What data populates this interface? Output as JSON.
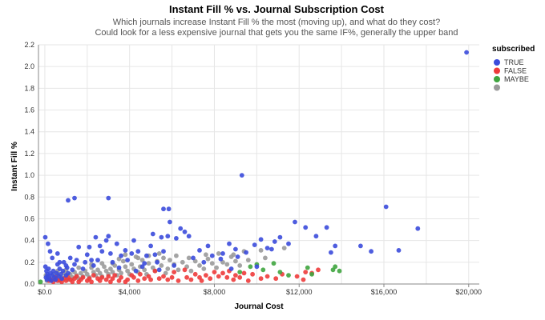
{
  "chart_data": {
    "type": "scatter",
    "title": "Instant Fill % vs. Journal Subscription Cost",
    "subtitle": [
      "Which journals increase Instant Fill % the most (moving up), and what do they cost?",
      "Could look for a less expensive journal that gets you the same IF%, generally the upper band"
    ],
    "xlabel": "Journal Cost",
    "ylabel": "Instant Fill %",
    "xlim": [
      -300,
      20500
    ],
    "ylim": [
      0,
      2.2
    ],
    "x_ticks": [
      0,
      4000,
      8000,
      12000,
      16000,
      20000
    ],
    "x_tick_labels": [
      "$0.0",
      "$4,000",
      "$8,000",
      "$12,000",
      "$16,000",
      "$20,000"
    ],
    "y_ticks": [
      0,
      0.2,
      0.4,
      0.6,
      0.8,
      1.0,
      1.2,
      1.4,
      1.6,
      1.8,
      2.0,
      2.2
    ],
    "y_tick_labels": [
      "0.0",
      "0.2",
      "0.4",
      "0.6",
      "0.8",
      "1.0",
      "1.2",
      "1.4",
      "1.6",
      "1.8",
      "2.0",
      "2.2"
    ],
    "grid": true,
    "legend": {
      "title": "subscribed",
      "placement": "right",
      "entries": [
        "TRUE",
        "FALSE",
        "MAYBE",
        ""
      ]
    },
    "series": [
      {
        "name": "TRUE",
        "color": "#3b4bdb",
        "points": [
          [
            19900,
            2.13
          ],
          [
            9300,
            1.0
          ],
          [
            3000,
            0.79
          ],
          [
            1400,
            0.79
          ],
          [
            1100,
            0.77
          ],
          [
            5600,
            0.69
          ],
          [
            5850,
            0.69
          ],
          [
            16100,
            0.71
          ],
          [
            17600,
            0.51
          ],
          [
            16700,
            0.31
          ],
          [
            15400,
            0.3
          ],
          [
            14900,
            0.35
          ],
          [
            13700,
            0.35
          ],
          [
            13500,
            0.29
          ],
          [
            13300,
            0.52
          ],
          [
            12800,
            0.44
          ],
          [
            12300,
            0.52
          ],
          [
            11800,
            0.57
          ],
          [
            11500,
            0.37
          ],
          [
            11100,
            0.43
          ],
          [
            10850,
            0.39
          ],
          [
            10700,
            0.32
          ],
          [
            10500,
            0.33
          ],
          [
            10200,
            0.41
          ],
          [
            9900,
            0.36
          ],
          [
            9500,
            0.29
          ],
          [
            9100,
            0.25
          ],
          [
            9000,
            0.32
          ],
          [
            8700,
            0.37
          ],
          [
            8400,
            0.28
          ],
          [
            8300,
            0.23
          ],
          [
            7900,
            0.26
          ],
          [
            7700,
            0.35
          ],
          [
            7300,
            0.31
          ],
          [
            7000,
            0.24
          ],
          [
            6800,
            0.44
          ],
          [
            6600,
            0.48
          ],
          [
            6400,
            0.51
          ],
          [
            6200,
            0.42
          ],
          [
            5900,
            0.57
          ],
          [
            5800,
            0.44
          ],
          [
            5600,
            0.3
          ],
          [
            5500,
            0.43
          ],
          [
            5300,
            0.2
          ],
          [
            5200,
            0.27
          ],
          [
            5100,
            0.46
          ],
          [
            5000,
            0.35
          ],
          [
            4800,
            0.26
          ],
          [
            4700,
            0.19
          ],
          [
            4600,
            0.16
          ],
          [
            4400,
            0.3
          ],
          [
            4200,
            0.4
          ],
          [
            4100,
            0.28
          ],
          [
            3900,
            0.22
          ],
          [
            3800,
            0.31
          ],
          [
            3600,
            0.26
          ],
          [
            3400,
            0.37
          ],
          [
            3200,
            0.2
          ],
          [
            3100,
            0.28
          ],
          [
            3000,
            0.44
          ],
          [
            2900,
            0.4
          ],
          [
            2700,
            0.3
          ],
          [
            2600,
            0.35
          ],
          [
            2500,
            0.22
          ],
          [
            2400,
            0.43
          ],
          [
            2200,
            0.22
          ],
          [
            2100,
            0.34
          ],
          [
            2000,
            0.27
          ],
          [
            1900,
            0.2
          ],
          [
            1800,
            0.14
          ],
          [
            1600,
            0.34
          ],
          [
            1500,
            0.22
          ],
          [
            1400,
            0.18
          ],
          [
            1300,
            0.13
          ],
          [
            1200,
            0.24
          ],
          [
            1100,
            0.1
          ],
          [
            1050,
            0.15
          ],
          [
            1000,
            0.08
          ],
          [
            900,
            0.2
          ],
          [
            850,
            0.12
          ],
          [
            800,
            0.05
          ],
          [
            750,
            0.09
          ],
          [
            700,
            0.14
          ],
          [
            650,
            0.07
          ],
          [
            600,
            0.18
          ],
          [
            550,
            0.1
          ],
          [
            500,
            0.04
          ],
          [
            450,
            0.06
          ],
          [
            400,
            0.12
          ],
          [
            350,
            0.08
          ],
          [
            300,
            0.03
          ],
          [
            260,
            0.1
          ],
          [
            220,
            0.05
          ],
          [
            180,
            0.14
          ],
          [
            150,
            0.07
          ],
          [
            120,
            0.09
          ],
          [
            100,
            0.04
          ],
          [
            80,
            0.12
          ],
          [
            50,
            0.06
          ],
          [
            30,
            0.16
          ],
          [
            20,
            0.43
          ],
          [
            150,
            0.37
          ],
          [
            250,
            0.3
          ],
          [
            350,
            0.24
          ],
          [
            700,
            0.2
          ],
          [
            1000,
            0.17
          ],
          [
            600,
            0.28
          ],
          [
            2300,
            0.17
          ],
          [
            3500,
            0.15
          ],
          [
            4300,
            0.12
          ],
          [
            5400,
            0.13
          ],
          [
            6100,
            0.17
          ],
          [
            7500,
            0.2
          ],
          [
            8800,
            0.14
          ],
          [
            10000,
            0.16
          ]
        ]
      },
      {
        "name": "FALSE",
        "color": "#ee3b3b",
        "points": [
          [
            12900,
            0.13
          ],
          [
            12600,
            0.1
          ],
          [
            12200,
            0.04
          ],
          [
            11200,
            0.09
          ],
          [
            10500,
            0.07
          ],
          [
            10200,
            0.05
          ],
          [
            9800,
            0.09
          ],
          [
            9400,
            0.1
          ],
          [
            9200,
            0.06
          ],
          [
            9000,
            0.08
          ],
          [
            8900,
            0.04
          ],
          [
            8600,
            0.06
          ],
          [
            8400,
            0.1
          ],
          [
            8200,
            0.07
          ],
          [
            8000,
            0.11
          ],
          [
            7800,
            0.05
          ],
          [
            7600,
            0.08
          ],
          [
            7300,
            0.06
          ],
          [
            7100,
            0.09
          ],
          [
            6900,
            0.04
          ],
          [
            6700,
            0.06
          ],
          [
            6300,
            0.03
          ],
          [
            6100,
            0.11
          ],
          [
            6000,
            0.06
          ],
          [
            5800,
            0.04
          ],
          [
            5600,
            0.07
          ],
          [
            5400,
            0.05
          ],
          [
            5200,
            0.12
          ],
          [
            5000,
            0.04
          ],
          [
            4900,
            0.07
          ],
          [
            4700,
            0.05
          ],
          [
            4500,
            0.09
          ],
          [
            4400,
            0.03
          ],
          [
            4200,
            0.06
          ],
          [
            4100,
            0.08
          ],
          [
            3900,
            0.04
          ],
          [
            3800,
            0.02
          ],
          [
            3600,
            0.06
          ],
          [
            3500,
            0.03
          ],
          [
            3300,
            0.08
          ],
          [
            3200,
            0.05
          ],
          [
            3100,
            0.02
          ],
          [
            3000,
            0.07
          ],
          [
            2900,
            0.04
          ],
          [
            2700,
            0.06
          ],
          [
            2600,
            0.03
          ],
          [
            2500,
            0.05
          ],
          [
            2300,
            0.08
          ],
          [
            2200,
            0.02
          ],
          [
            2100,
            0.05
          ],
          [
            2000,
            0.03
          ],
          [
            1800,
            0.06
          ],
          [
            1700,
            0.04
          ],
          [
            1600,
            0.02
          ],
          [
            1500,
            0.07
          ],
          [
            1400,
            0.05
          ],
          [
            1300,
            0.02
          ],
          [
            1200,
            0.04
          ],
          [
            1100,
            0.06
          ],
          [
            1000,
            0.03
          ],
          [
            900,
            0.05
          ],
          [
            800,
            0.02
          ],
          [
            700,
            0.04
          ],
          [
            600,
            0.03
          ],
          [
            500,
            0.06
          ],
          [
            400,
            0.02
          ],
          [
            300,
            0.04
          ],
          [
            200,
            0.03
          ],
          [
            7400,
            0.03
          ],
          [
            8700,
            0.12
          ],
          [
            9600,
            0.03
          ],
          [
            10900,
            0.05
          ],
          [
            11900,
            0.07
          ],
          [
            12300,
            0.11
          ],
          [
            6600,
            0.13
          ]
        ]
      },
      {
        "name": "MAYBE",
        "color": "#3fa53f",
        "points": [
          [
            -200,
            0.02
          ],
          [
            9700,
            0.16
          ],
          [
            10000,
            0.18
          ],
          [
            10800,
            0.19
          ],
          [
            11100,
            0.11
          ],
          [
            12400,
            0.15
          ],
          [
            13700,
            0.16
          ],
          [
            13900,
            0.12
          ],
          [
            13600,
            0.13
          ],
          [
            12600,
            0.09
          ],
          [
            11500,
            0.08
          ],
          [
            10300,
            0.13
          ],
          [
            9200,
            0.11
          ]
        ]
      },
      {
        "name": "",
        "color": "#9a9a9a",
        "points": [
          [
            11300,
            0.33
          ],
          [
            10400,
            0.24
          ],
          [
            9600,
            0.22
          ],
          [
            9200,
            0.17
          ],
          [
            9000,
            0.21
          ],
          [
            8800,
            0.25
          ],
          [
            8600,
            0.18
          ],
          [
            8400,
            0.2
          ],
          [
            8100,
            0.15
          ],
          [
            7900,
            0.19
          ],
          [
            7700,
            0.23
          ],
          [
            7500,
            0.14
          ],
          [
            7300,
            0.17
          ],
          [
            7100,
            0.21
          ],
          [
            6900,
            0.12
          ],
          [
            6700,
            0.16
          ],
          [
            6500,
            0.2
          ],
          [
            6300,
            0.13
          ],
          [
            6100,
            0.18
          ],
          [
            5900,
            0.22
          ],
          [
            5800,
            0.14
          ],
          [
            5700,
            0.1
          ],
          [
            5500,
            0.17
          ],
          [
            5300,
            0.21
          ],
          [
            5200,
            0.12
          ],
          [
            5100,
            0.15
          ],
          [
            4900,
            0.19
          ],
          [
            4800,
            0.09
          ],
          [
            4700,
            0.13
          ],
          [
            4600,
            0.22
          ],
          [
            4500,
            0.16
          ],
          [
            4400,
            0.11
          ],
          [
            4300,
            0.25
          ],
          [
            4200,
            0.14
          ],
          [
            4100,
            0.18
          ],
          [
            4000,
            0.09
          ],
          [
            3900,
            0.12
          ],
          [
            3800,
            0.16
          ],
          [
            3700,
            0.21
          ],
          [
            3600,
            0.1
          ],
          [
            3500,
            0.13
          ],
          [
            3400,
            0.08
          ],
          [
            3300,
            0.17
          ],
          [
            3200,
            0.11
          ],
          [
            3100,
            0.14
          ],
          [
            3000,
            0.09
          ],
          [
            2900,
            0.12
          ],
          [
            2800,
            0.16
          ],
          [
            2700,
            0.07
          ],
          [
            2600,
            0.1
          ],
          [
            2500,
            0.13
          ],
          [
            2400,
            0.08
          ],
          [
            2300,
            0.11
          ],
          [
            2200,
            0.15
          ],
          [
            2100,
            0.06
          ],
          [
            2000,
            0.09
          ],
          [
            1900,
            0.12
          ],
          [
            1800,
            0.07
          ],
          [
            1700,
            0.1
          ],
          [
            1600,
            0.05
          ],
          [
            1500,
            0.08
          ],
          [
            1400,
            0.11
          ],
          [
            1300,
            0.06
          ],
          [
            1200,
            0.09
          ],
          [
            1100,
            0.04
          ],
          [
            1000,
            0.07
          ],
          [
            900,
            0.1
          ],
          [
            800,
            0.06
          ],
          [
            700,
            0.03
          ],
          [
            600,
            0.08
          ],
          [
            500,
            0.05
          ],
          [
            400,
            0.09
          ],
          [
            300,
            0.04
          ],
          [
            200,
            0.06
          ],
          [
            100,
            0.03
          ],
          [
            50,
            0.08
          ],
          [
            3200,
            0.19
          ],
          [
            3800,
            0.27
          ],
          [
            4400,
            0.24
          ],
          [
            4900,
            0.26
          ],
          [
            5600,
            0.24
          ],
          [
            6200,
            0.26
          ],
          [
            6800,
            0.24
          ],
          [
            7600,
            0.27
          ],
          [
            8200,
            0.28
          ],
          [
            8900,
            0.27
          ],
          [
            9400,
            0.3
          ],
          [
            10200,
            0.31
          ],
          [
            2700,
            0.19
          ],
          [
            2200,
            0.18
          ],
          [
            1600,
            0.15
          ],
          [
            1000,
            0.13
          ],
          [
            600,
            0.12
          ],
          [
            3500,
            0.23
          ],
          [
            5400,
            0.28
          ]
        ]
      }
    ]
  }
}
